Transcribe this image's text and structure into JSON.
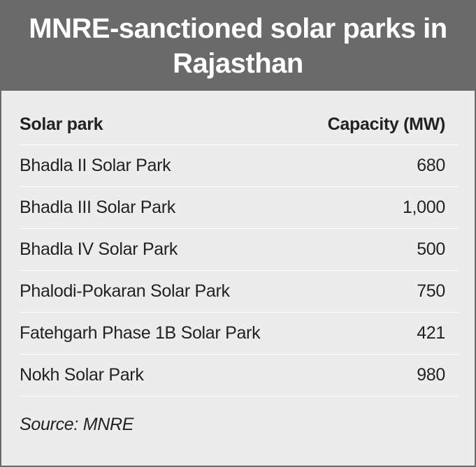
{
  "header": {
    "title": "MNRE-sanctioned solar parks in Rajasthan"
  },
  "table": {
    "columns": [
      "Solar park",
      "Capacity (MW)"
    ],
    "rows": [
      [
        "Bhadla II Solar Park",
        "680"
      ],
      [
        "Bhadla III Solar Park",
        "1,000"
      ],
      [
        "Bhadla IV Solar Park",
        "500"
      ],
      [
        "Phalodi-Pokaran Solar Park",
        "750"
      ],
      [
        "Fatehgarh Phase 1B Solar Park",
        "421"
      ],
      [
        "Nokh Solar Park",
        "980"
      ]
    ]
  },
  "footer": {
    "source": "Source: MNRE"
  }
}
